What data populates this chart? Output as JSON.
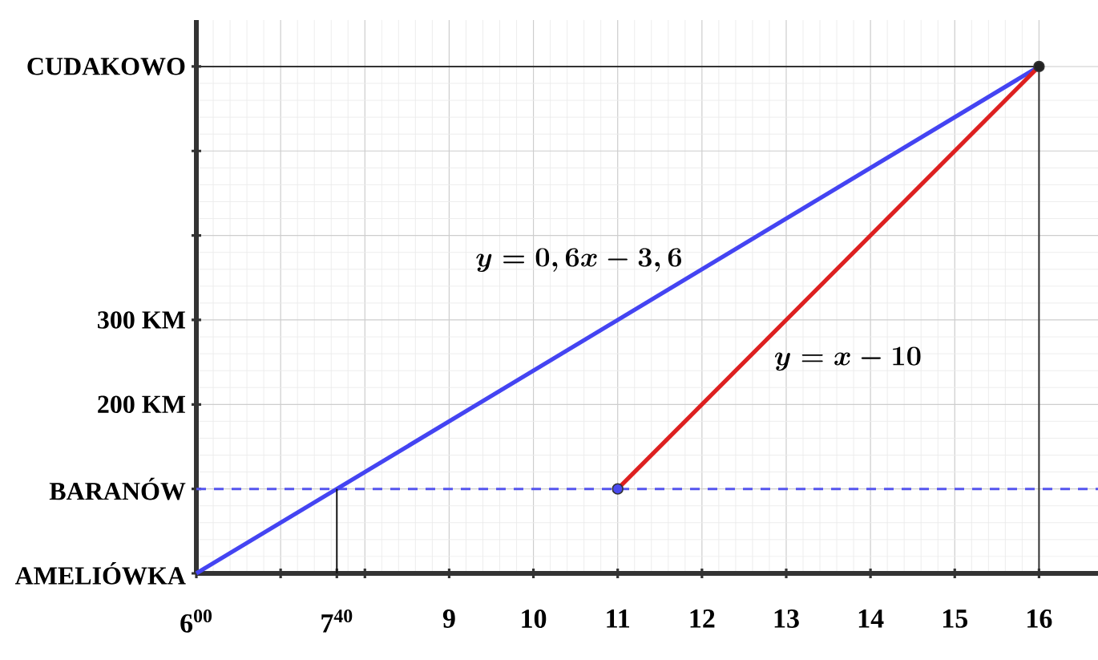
{
  "chart_data": {
    "type": "line",
    "xlim": [
      6,
      16.7
    ],
    "ylim": [
      0,
      655
    ],
    "xticks": [
      {
        "value": 6,
        "label": "6$^{00}$"
      },
      {
        "value": 7,
        "label": null
      },
      {
        "value": 7.667,
        "label": "7$^{40}$"
      },
      {
        "value": 8,
        "label": null
      },
      9,
      10,
      11,
      12,
      13,
      14,
      15,
      16
    ],
    "yticks": [
      {
        "value": 0,
        "label": "AMELIÓWKA"
      },
      {
        "value": 100,
        "label": "BARANÓW"
      },
      {
        "value": 200,
        "label": "200 KM"
      },
      {
        "value": 300,
        "label": "300 KM"
      },
      {
        "value": 400,
        "label": null
      },
      {
        "value": 500,
        "label": null
      },
      {
        "value": 600,
        "label": "CUDAKOWO"
      }
    ],
    "grid": true,
    "series": [
      {
        "name": "y=0,6x-3,6",
        "color": "#4444f2",
        "x": [
          6,
          16
        ],
        "values": [
          0,
          600
        ]
      },
      {
        "name": "y=x-10",
        "color": "#dd2020",
        "x": [
          11,
          16
        ],
        "values": [
          100,
          600
        ]
      },
      {
        "type": "line",
        "color": "#333333",
        "x": [
          6,
          16,
          16
        ],
        "values": [
          600,
          600,
          0
        ]
      },
      {
        "type": "line",
        "color": "#111111",
        "x": [
          7.667,
          7.667
        ],
        "values": [
          0,
          100
        ]
      },
      {
        "type": "scatter",
        "marker": "circle",
        "colors": [
          "#4a4af0",
          "#222222"
        ],
        "x": [
          11,
          16
        ],
        "values": [
          100,
          600
        ]
      }
    ],
    "ref_lines": [
      {
        "axis": "y",
        "value": 100,
        "color": "#5555ee",
        "line_style": "dashed"
      }
    ]
  }
}
